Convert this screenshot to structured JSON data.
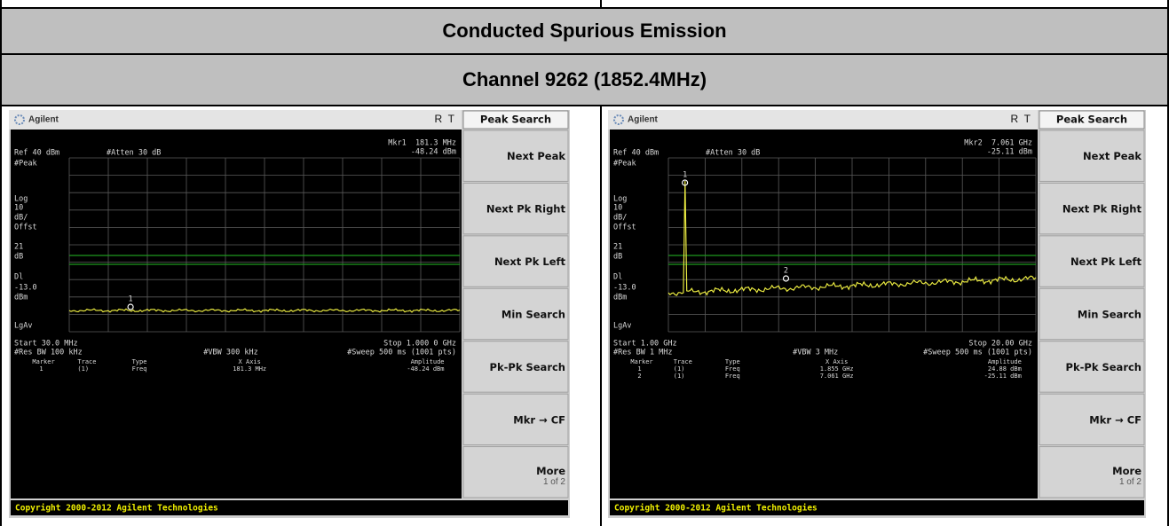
{
  "title": "Conducted Spurious Emission",
  "subtitle": "Channel 9262 (1852.4MHz)",
  "panels": [
    {
      "brand": "Agilent",
      "status": "R  T",
      "menu_title": "Peak Search",
      "ref": "Ref 40 dBm",
      "atten": "#Atten 30 dB",
      "marker_readout": [
        "Mkr1  181.3 MHz",
        "-48.24 dBm"
      ],
      "side_labels": [
        "#Peak",
        "Log",
        "10",
        "dB/",
        "Offst",
        "21",
        "dB",
        "Dl",
        "-13.0",
        "dBm",
        "LgAv"
      ],
      "start": "Start 30.0 MHz",
      "stop": "Stop 1.000 0 GHz",
      "res_bw": "#Res BW 100 kHz",
      "vbw": "#VBW 300 kHz",
      "sweep": "#Sweep 500 ms (1001 pts)",
      "marker_table": {
        "header": [
          "Marker",
          "Trace",
          "Type",
          "X Axis",
          "Amplitude"
        ],
        "rows": [
          [
            "1",
            "(1)",
            "Freq",
            "181.3 MHz",
            "-48.24 dBm"
          ]
        ]
      },
      "trace_markers": [
        "1"
      ],
      "softkeys": [
        "Next Peak",
        "Next Pk Right",
        "Next Pk Left",
        "Min Search",
        "Pk-Pk Search",
        "Mkr → CF"
      ],
      "more": "More",
      "more_page": "1 of 2",
      "copyright": "Copyright 2000-2012 Agilent Technologies"
    },
    {
      "brand": "Agilent",
      "status": "R  T",
      "menu_title": "Peak Search",
      "ref": "Ref 40 dBm",
      "atten": "#Atten 30 dB",
      "marker_readout": [
        "Mkr2  7.061 GHz",
        "-25.11 dBm"
      ],
      "side_labels": [
        "#Peak",
        "Log",
        "10",
        "dB/",
        "Offst",
        "21",
        "dB",
        "Dl",
        "-13.0",
        "dBm",
        "LgAv"
      ],
      "start": "Start 1.00 GHz",
      "stop": "Stop 20.00 GHz",
      "res_bw": "#Res BW 1 MHz",
      "vbw": "#VBW 3 MHz",
      "sweep": "#Sweep 500 ms (1001 pts)",
      "marker_table": {
        "header": [
          "Marker",
          "Trace",
          "Type",
          "X Axis",
          "Amplitude"
        ],
        "rows": [
          [
            "1",
            "(1)",
            "Freq",
            "1.855 GHz",
            "24.88 dBm"
          ],
          [
            "2",
            "(1)",
            "Freq",
            "7.061 GHz",
            "-25.11 dBm"
          ]
        ]
      },
      "trace_markers": [
        "1",
        "2"
      ],
      "softkeys": [
        "Next Peak",
        "Next Pk Right",
        "Next Pk Left",
        "Min Search",
        "Pk-Pk Search",
        "Mkr → CF"
      ],
      "more": "More",
      "more_page": "1 of 2",
      "copyright": "Copyright 2000-2012 Agilent Technologies"
    }
  ]
}
